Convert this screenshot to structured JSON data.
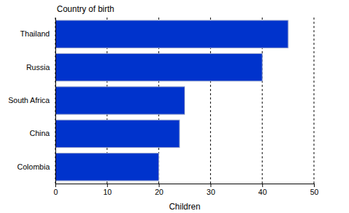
{
  "chart_data": {
    "type": "bar",
    "orientation": "horizontal",
    "y_label": "Country of birth",
    "x_label": "Children",
    "categories": [
      "Thailand",
      "Russia",
      "South Africa",
      "China",
      "Colombia"
    ],
    "values": [
      45,
      40,
      25,
      24,
      20
    ],
    "color": "#0033cc",
    "xlim": [
      0,
      50
    ],
    "xticks": [
      0,
      10,
      20,
      30,
      40,
      50
    ],
    "grid": true
  }
}
